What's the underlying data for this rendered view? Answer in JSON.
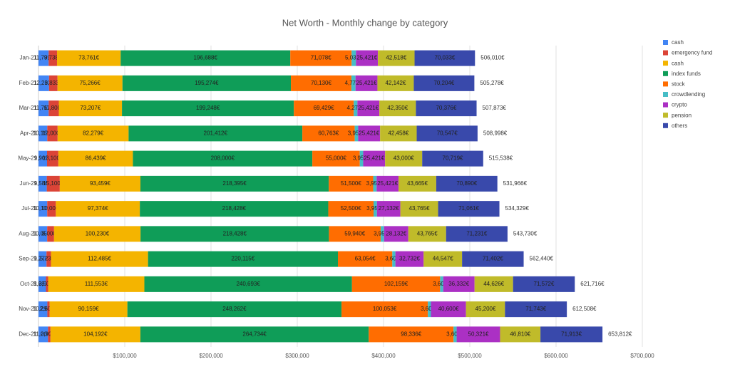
{
  "chart_data": {
    "type": "stacked_bar_horizontal",
    "title": "Net Worth - Monthly change by category",
    "categories": [
      "Jan-21",
      "Feb-21",
      "Mar-21",
      "Apr-21",
      "May-21",
      "Jun-21",
      "Jul-21",
      "Aug-21",
      "Sep-21",
      "Oct-21",
      "Nov-21",
      "Dec-21"
    ],
    "series": [
      {
        "name": "cash",
        "color": "#4285f4",
        "values": [
          11739,
          12233,
          11767,
          10168,
          9909,
          9586,
          10119,
          10054,
          9274,
          8681,
          10291,
          11006
        ],
        "value_labels": [
          "11,739€",
          "12,233€",
          "11,767€",
          "10,168€",
          "9,909€",
          "9,586€",
          "10,119€",
          "10,054€",
          "9,274€",
          "8,681€",
          "10,291€",
          "11,006€"
        ]
      },
      {
        "name": "emergency fund",
        "color": "#db4437",
        "values": [
          9738,
          9833,
          11800,
          12000,
          13100,
          15100,
          10000,
          8000,
          5231,
          2500,
          2600,
          2900
        ],
        "value_labels": [
          "9,738€",
          "9,833€",
          "11,800€",
          "12,000€",
          "13,100€",
          "15,100€",
          "10,000€",
          "8,000€",
          "5,231€",
          "2,500€",
          "2,600€",
          "2,900€"
        ]
      },
      {
        "name": "cash",
        "color": "#f4b400",
        "values": [
          73761,
          75266,
          73207,
          82279,
          86439,
          93459,
          97374,
          100230,
          112485,
          111553,
          90159,
          104192
        ],
        "value_labels": [
          "73,761€",
          "75,266€",
          "73,207€",
          "82,279€",
          "86,439€",
          "93,459€",
          "97,374€",
          "100,230€",
          "112,485€",
          "111,553€",
          "90,159€",
          "104,192€"
        ]
      },
      {
        "name": "index funds",
        "color": "#0f9d58",
        "values": [
          196688,
          195274,
          199248,
          201412,
          208000,
          218395,
          218428,
          218428,
          220115,
          240693,
          248262,
          264734
        ],
        "value_labels": [
          "196,688€",
          "195,274€",
          "199,248€",
          "201,412€",
          "208,000€",
          "218,395€",
          "218,428€",
          "218,428€",
          "220,115€",
          "240,693€",
          "248,262€",
          "264,734€"
        ]
      },
      {
        "name": "stock",
        "color": "#ff6d01",
        "values": [
          71078,
          70130,
          69429,
          60763,
          55000,
          51500,
          52500,
          59940,
          63054,
          102159,
          100053,
          98336
        ],
        "value_labels": [
          "71,078€",
          "70,130€",
          "69,429€",
          "60,763€",
          "55,000€",
          "51,500€",
          "52,500€",
          "59,940€",
          "63,054€",
          "102,159€",
          "100,053€",
          "98,336€"
        ]
      },
      {
        "name": "crowdlending",
        "color": "#46bdc6",
        "values": [
          5034,
          4775,
          4275,
          3950,
          3950,
          3950,
          3950,
          3950,
          3600,
          3600,
          3600,
          3600
        ],
        "value_labels": [
          "5,034€",
          "4,775€",
          "4,275€",
          "3,950€",
          "3,950€",
          "3,950€",
          "3,950€",
          "3,950€",
          "3,600€",
          "3,600€",
          "3,600€",
          "3,600€"
        ]
      },
      {
        "name": "crypto",
        "color": "#ab30c4",
        "values": [
          25421,
          25421,
          25421,
          25421,
          25421,
          25421,
          27132,
          28132,
          32732,
          36332,
          40600,
          50321
        ],
        "value_labels": [
          "25,421€",
          "25,421€",
          "25,421€",
          "25,421€",
          "25,421€",
          "25,421€",
          "27,132€",
          "28,132€",
          "32,732€",
          "36,332€",
          "40,600€",
          "50,321€"
        ]
      },
      {
        "name": "pension",
        "color": "#c0bb2a",
        "values": [
          42518,
          42142,
          42350,
          42458,
          43000,
          43665,
          43765,
          43765,
          44547,
          44626,
          45200,
          46810
        ],
        "value_labels": [
          "42,518€",
          "42,142€",
          "42,350€",
          "42,458€",
          "43,000€",
          "43,665€",
          "43,765€",
          "43,765€",
          "44,547€",
          "44,626€",
          "45,200€",
          "46,810€"
        ]
      },
      {
        "name": "others",
        "color": "#3949ab",
        "values": [
          70033,
          70204,
          70376,
          70547,
          70719,
          70890,
          71061,
          71231,
          71402,
          71572,
          71743,
          71913
        ],
        "value_labels": [
          "70,033€",
          "70,204€",
          "70,376€",
          "70,547€",
          "70,719€",
          "70,890€",
          "71,061€",
          "71,231€",
          "71,402€",
          "71,572€",
          "71,743€",
          "71,913€"
        ]
      }
    ],
    "totals": [
      506010,
      505278,
      507873,
      508998,
      515538,
      531966,
      534329,
      543730,
      562440,
      621716,
      612508,
      653812
    ],
    "total_labels": [
      "506,010€",
      "505,278€",
      "507,873€",
      "508,998€",
      "515,538€",
      "531,966€",
      "534,329€",
      "543,730€",
      "562,440€",
      "621,716€",
      "612,508€",
      "653,812€"
    ],
    "xlim": [
      0,
      700000
    ],
    "xticks": [
      {
        "value": 100000,
        "label": "$100,000"
      },
      {
        "value": 200000,
        "label": "$200,000"
      },
      {
        "value": 300000,
        "label": "$300,000"
      },
      {
        "value": 400000,
        "label": "$400,000"
      },
      {
        "value": 500000,
        "label": "$500,000"
      },
      {
        "value": 600000,
        "label": "$600,000"
      },
      {
        "value": 700000,
        "label": "$700,000"
      }
    ],
    "grid": true,
    "legend": "right"
  }
}
